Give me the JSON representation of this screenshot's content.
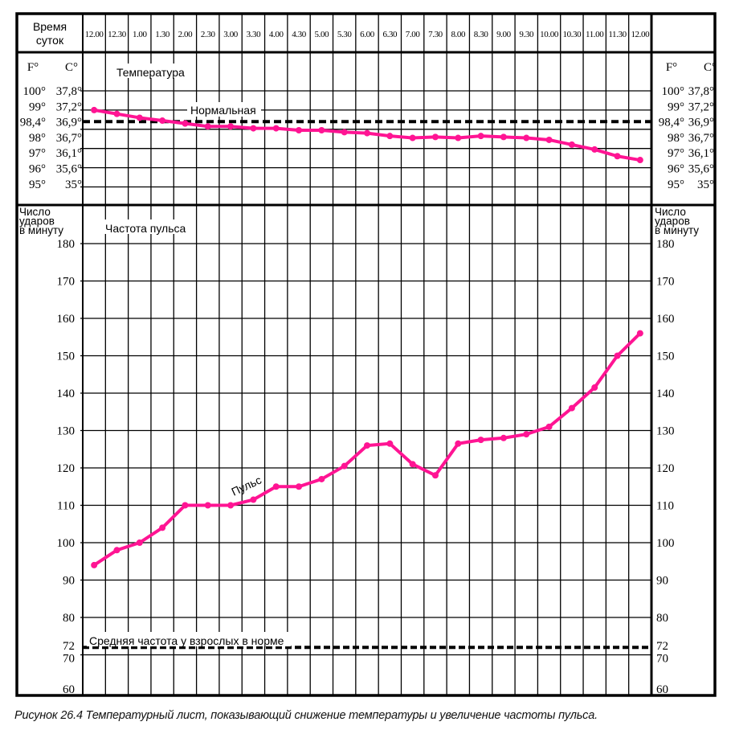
{
  "chart_data": [
    {
      "type": "line",
      "title": "Температура",
      "header_label": "Время суток",
      "x": [
        "12.00",
        "12.30",
        "1.00",
        "1.30",
        "2.00",
        "2.30",
        "3.00",
        "3.30",
        "4.00",
        "4.30",
        "5.00",
        "5.30",
        "6.00",
        "6.30",
        "7.00",
        "7.30",
        "8.00",
        "8.30",
        "9.00",
        "9.30",
        "10.00",
        "10.30",
        "11.00",
        "11.30",
        "12.00"
      ],
      "y_axis_F": {
        "unit": "F°",
        "ticks": [
          "100°",
          "99°",
          "98,4°",
          "98°",
          "97°",
          "96°",
          "95°"
        ]
      },
      "y_axis_C": {
        "unit": "C°",
        "ticks": [
          "37,8°",
          "37,2°",
          "36,9°",
          "36,7°",
          "36,1°",
          "35,6°",
          "35°"
        ]
      },
      "ylim_F": [
        95,
        100
      ],
      "gridlines_F": [
        100,
        99,
        98,
        97,
        96,
        95
      ],
      "reference": {
        "label": "Нормальная",
        "value": 98.4,
        "style": "dashed"
      },
      "series": [
        {
          "values": [
            99.0,
            98.8,
            98.6,
            98.45,
            98.3,
            98.15,
            98.15,
            98.05,
            98.05,
            97.95,
            97.95,
            97.85,
            97.8,
            97.65,
            97.55,
            97.6,
            97.55,
            97.65,
            97.6,
            97.55,
            97.45,
            97.2,
            96.95,
            96.6,
            96.4
          ],
          "color": "#ff1493"
        }
      ],
      "grid": true
    },
    {
      "type": "line",
      "title": "Частота пульса",
      "ylabel": "Число ударов в минуту",
      "ylim": [
        60,
        180
      ],
      "yticks": [
        "180",
        "170",
        "160",
        "150",
        "140",
        "130",
        "120",
        "110",
        "100",
        "90",
        "80",
        "72",
        "70",
        "60"
      ],
      "ytick_values": [
        180,
        170,
        160,
        150,
        140,
        130,
        120,
        110,
        100,
        90,
        80,
        72,
        70,
        60
      ],
      "gridlines": [
        180,
        170,
        160,
        150,
        140,
        130,
        120,
        110,
        100,
        90,
        80,
        70
      ],
      "reference": {
        "label": "Средняя частота у взрослых в норме",
        "value": 72,
        "style": "dashed"
      },
      "series": [
        {
          "name": "Пульс",
          "values": [
            94,
            98,
            100,
            104,
            110,
            110,
            110,
            111.5,
            115,
            115,
            117,
            120.5,
            126,
            126.5,
            121,
            118,
            126.5,
            127.5,
            128,
            129,
            131,
            136,
            141.5,
            150,
            156
          ],
          "color": "#ff1493"
        }
      ],
      "grid": true
    }
  ],
  "caption": "Рисунок 26.4  Температурный лист, показывающий снижение температуры и увеличение частоты пульса.",
  "header": {
    "time_label_line1": "Время",
    "time_label_line2": "суток"
  },
  "pulse_ylabel_lines": [
    "Число",
    "ударов",
    "в минуту"
  ]
}
